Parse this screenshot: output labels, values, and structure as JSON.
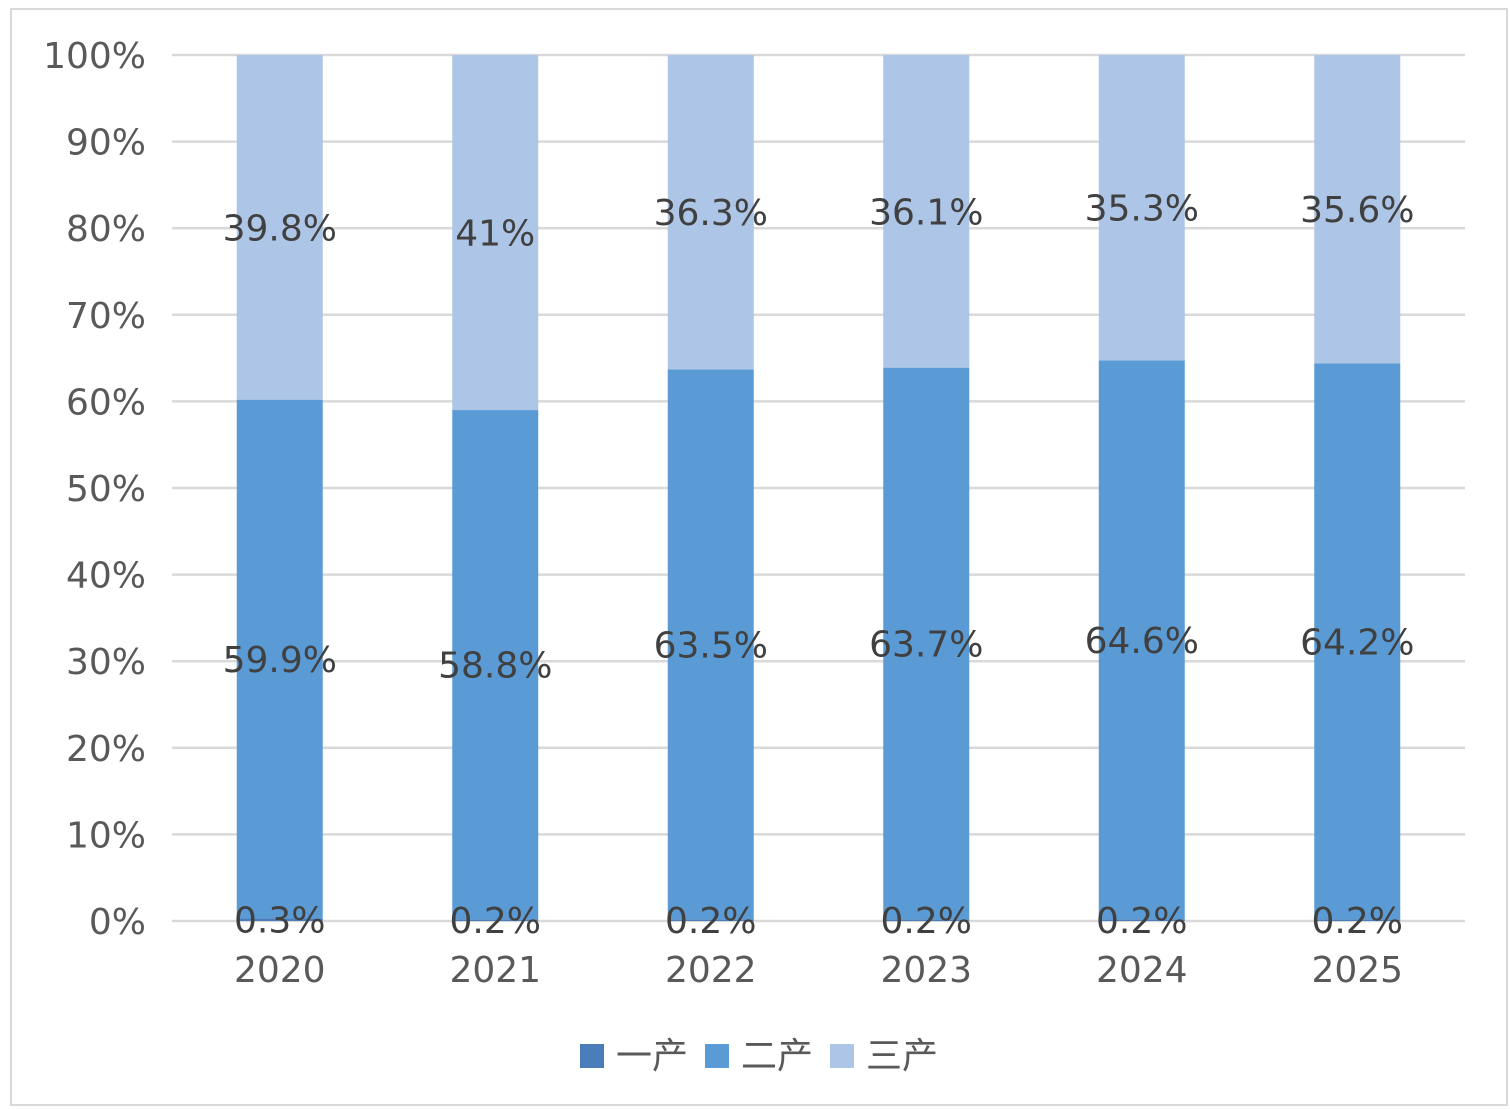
{
  "chart_data": {
    "type": "bar",
    "stacked": true,
    "percent_stacked": true,
    "categories": [
      "2020",
      "2021",
      "2022",
      "2023",
      "2024",
      "2025"
    ],
    "series": [
      {
        "name": "一产",
        "color": "#4a7ebb",
        "values": [
          0.3,
          0.2,
          0.2,
          0.2,
          0.2,
          0.2
        ],
        "labels": [
          "0.3%",
          "0.2%",
          "0.2%",
          "0.2%",
          "0.2%",
          "0.2%"
        ]
      },
      {
        "name": "二产",
        "color": "#5b9bd5",
        "values": [
          59.9,
          58.8,
          63.5,
          63.7,
          64.6,
          64.2
        ],
        "labels": [
          "59.9%",
          "58.8%",
          "63.5%",
          "63.7%",
          "64.6%",
          "64.2%"
        ]
      },
      {
        "name": "三产",
        "color": "#adc5e6",
        "values": [
          39.8,
          41,
          36.3,
          36.1,
          35.3,
          35.6
        ],
        "labels": [
          "39.8%",
          "41%",
          "36.3%",
          "36.1%",
          "35.3%",
          "35.6%"
        ]
      }
    ],
    "y_ticks": [
      "0%",
      "10%",
      "20%",
      "30%",
      "40%",
      "50%",
      "60%",
      "70%",
      "80%",
      "90%",
      "100%"
    ],
    "ylim": [
      0,
      100
    ],
    "grid": true,
    "legend_position": "bottom"
  }
}
